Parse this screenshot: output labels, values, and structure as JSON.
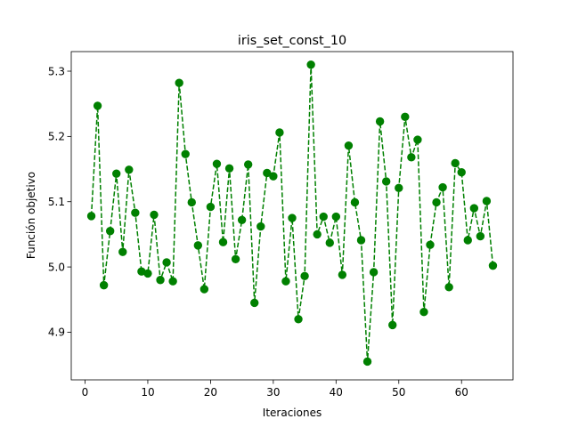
{
  "chart_data": {
    "type": "line",
    "title": "iris_set_const_10",
    "xlabel": "Iteraciones",
    "ylabel": "Función objetivo",
    "xlim": [
      -2.2,
      68.2
    ],
    "ylim": [
      4.827,
      5.33
    ],
    "xticks": [
      0,
      10,
      20,
      30,
      40,
      50,
      60
    ],
    "yticks": [
      4.9,
      5.0,
      5.1,
      5.2,
      5.3
    ],
    "ytick_labels": [
      "4.9",
      "5.0",
      "5.1",
      "5.2",
      "5.3"
    ],
    "grid": false,
    "line_style": "dashed",
    "marker": "circle",
    "color": "#008000",
    "series": [
      {
        "x": [
          1,
          2,
          3,
          4,
          5,
          6,
          7,
          8,
          9,
          10,
          11,
          12,
          13,
          14,
          15,
          16,
          17,
          18,
          19,
          20,
          21,
          22,
          23,
          24,
          25,
          26,
          27,
          28,
          29,
          30,
          31,
          32,
          33,
          34,
          35,
          36,
          37,
          38,
          39,
          40,
          41,
          42,
          43,
          44,
          45,
          46,
          47,
          48,
          49,
          50,
          51,
          52,
          53,
          54,
          55,
          56,
          57,
          58,
          59,
          60,
          61,
          62,
          63,
          64,
          65
        ],
        "values": [
          5.078,
          5.247,
          4.972,
          5.055,
          5.143,
          5.023,
          5.149,
          5.083,
          4.993,
          4.99,
          5.08,
          4.98,
          5.007,
          4.978,
          5.282,
          5.173,
          5.099,
          5.033,
          4.966,
          5.092,
          5.158,
          5.038,
          5.151,
          5.012,
          5.072,
          5.157,
          4.945,
          5.062,
          5.144,
          5.139,
          5.206,
          4.978,
          5.075,
          4.92,
          4.986,
          5.31,
          5.05,
          5.077,
          5.037,
          5.077,
          4.988,
          5.186,
          5.099,
          5.041,
          4.855,
          4.992,
          5.223,
          5.131,
          4.911,
          5.121,
          5.23,
          5.168,
          5.195,
          4.931,
          5.034,
          5.099,
          5.122,
          4.969,
          5.159,
          5.145,
          5.041,
          5.09,
          5.047,
          5.101,
          5.002
        ]
      }
    ]
  }
}
